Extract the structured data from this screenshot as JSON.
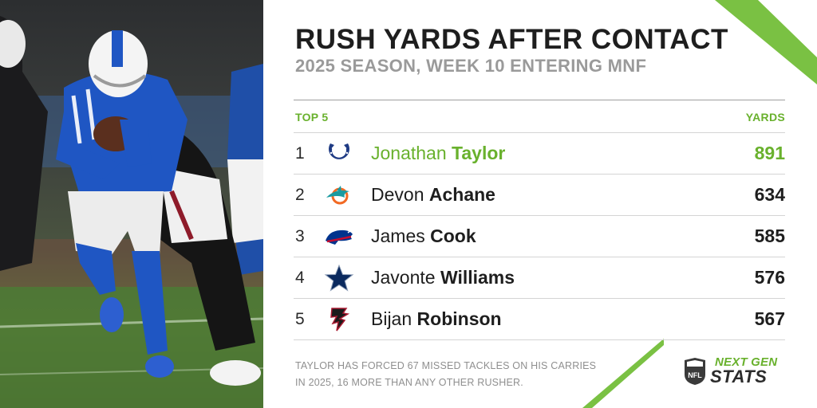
{
  "header": {
    "title": "RUSH YARDS AFTER CONTACT",
    "subtitle": "2025 SEASON, WEEK 10 ENTERING MNF"
  },
  "chart_data": {
    "type": "table",
    "title": "RUSH YARDS AFTER CONTACT",
    "subtitle": "2025 SEASON, WEEK 10 ENTERING MNF",
    "columns": [
      "TOP 5",
      "YARDS"
    ],
    "rows": [
      {
        "rank": "1",
        "first": "Jonathan",
        "last": "Taylor",
        "team": "colts",
        "yards": "891"
      },
      {
        "rank": "2",
        "first": "Devon",
        "last": "Achane",
        "team": "dolphins",
        "yards": "634"
      },
      {
        "rank": "3",
        "first": "James",
        "last": "Cook",
        "team": "bills",
        "yards": "585"
      },
      {
        "rank": "4",
        "first": "Javonte",
        "last": "Williams",
        "team": "cowboys",
        "yards": "576"
      },
      {
        "rank": "5",
        "first": "Bijan",
        "last": "Robinson",
        "team": "falcons",
        "yards": "567"
      }
    ]
  },
  "footnote": {
    "line1": "TAYLOR HAS FORCED 67 MISSED TACKLES ON HIS CARRIES",
    "line2": "IN 2025, 16 MORE THAN ANY OTHER RUSHER."
  },
  "brand": {
    "league": "NFL",
    "line1": "NEXT GEN",
    "line2": "STATS"
  },
  "colors": {
    "accent": "#69b12d",
    "text": "#1e1e1e",
    "muted": "#9a9a9a",
    "colts": "#1f3b84",
    "dolphins": "#1a9aa0",
    "bills": "#00338d",
    "cowboys": "#0b2a5e",
    "falcons": "#a71930"
  }
}
